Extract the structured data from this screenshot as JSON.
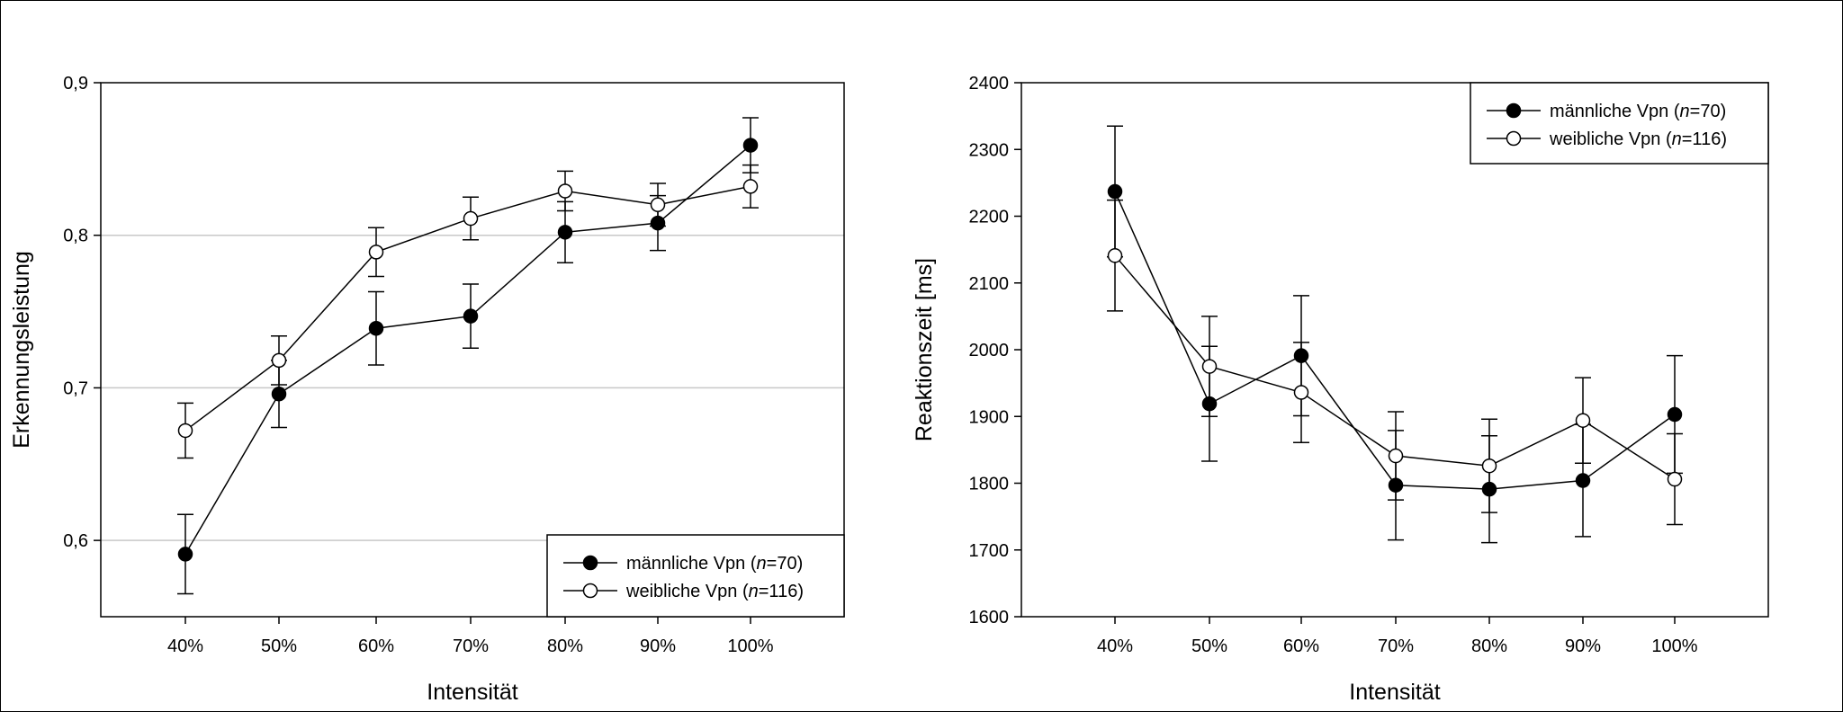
{
  "chart_data": [
    {
      "type": "line",
      "title": "",
      "xlabel": "Intensität",
      "ylabel": "Erkennungsleistung",
      "categories": [
        "40%",
        "50%",
        "60%",
        "70%",
        "80%",
        "90%",
        "100%"
      ],
      "ylim": [
        0.55,
        0.9
      ],
      "yticks": [
        "0,6",
        "0,7",
        "0,8",
        "0,9"
      ],
      "ytick_values": [
        0.6,
        0.7,
        0.8,
        0.9
      ],
      "grid": "horizontal",
      "legend_position": "bottom-right",
      "series": [
        {
          "name_prefix": "männliche Vpn (",
          "name_italic": "n",
          "name_suffix": "=70)",
          "marker": "filled",
          "values": [
            0.591,
            0.696,
            0.739,
            0.747,
            0.802,
            0.808,
            0.859
          ],
          "errors": [
            0.026,
            0.022,
            0.024,
            0.021,
            0.02,
            0.018,
            0.018
          ]
        },
        {
          "name_prefix": "weibliche Vpn (",
          "name_italic": "n",
          "name_suffix": "=116)",
          "marker": "open",
          "values": [
            0.672,
            0.718,
            0.789,
            0.811,
            0.829,
            0.82,
            0.832
          ],
          "errors": [
            0.018,
            0.016,
            0.016,
            0.014,
            0.013,
            0.014,
            0.014
          ]
        }
      ]
    },
    {
      "type": "line",
      "title": "",
      "xlabel": "Intensität",
      "ylabel": "Reaktionszeit [ms]",
      "categories": [
        "40%",
        "50%",
        "60%",
        "70%",
        "80%",
        "90%",
        "100%"
      ],
      "ylim": [
        1600,
        2400
      ],
      "yticks": [
        "1600",
        "1700",
        "1800",
        "1900",
        "2000",
        "2100",
        "2200",
        "2300",
        "2400"
      ],
      "ytick_values": [
        1600,
        1700,
        1800,
        1900,
        2000,
        2100,
        2200,
        2300,
        2400
      ],
      "grid": "none",
      "legend_position": "top-right",
      "series": [
        {
          "name_prefix": "männliche Vpn (",
          "name_italic": "n",
          "name_suffix": "=70)",
          "marker": "filled",
          "values": [
            2237,
            1919,
            1991,
            1797,
            1791,
            1804,
            1903
          ],
          "errors": [
            98,
            86,
            90,
            82,
            80,
            84,
            88
          ]
        },
        {
          "name_prefix": "weibliche Vpn (",
          "name_italic": "n",
          "name_suffix": "=116)",
          "marker": "open",
          "values": [
            2141,
            1975,
            1936,
            1841,
            1826,
            1894,
            1806
          ],
          "errors": [
            83,
            75,
            75,
            66,
            70,
            64,
            68
          ]
        }
      ]
    }
  ]
}
